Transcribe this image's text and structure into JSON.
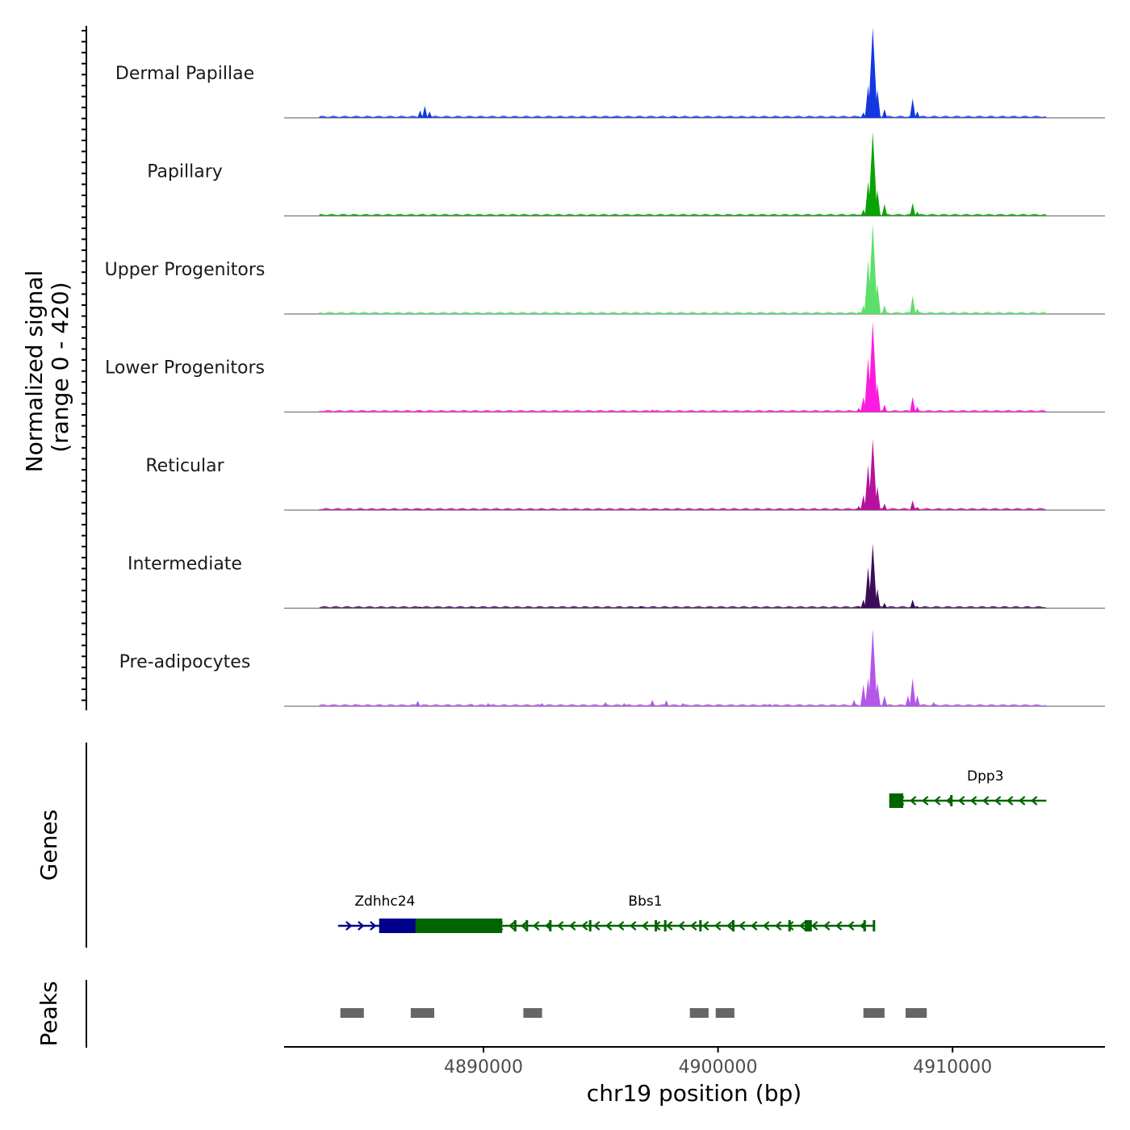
{
  "chart_data": {
    "type": "area",
    "title": "",
    "chromosome": "chr19",
    "xlabel": "chr19 position (bp)",
    "ylabel_line1": "Normalized signal",
    "ylabel_line2": "(range 0 - 420)",
    "ylim": [
      0,
      420
    ],
    "xlim": [
      4881500,
      4916500
    ],
    "x_ticks": [
      4890000,
      4900000,
      4910000
    ],
    "x_tick_labels": [
      "4890000",
      "4900000",
      "4910000"
    ],
    "tracks": [
      {
        "name": "Dermal Papillae",
        "color": "#1437e0",
        "peaks": [
          [
            4884500,
            4
          ],
          [
            4887300,
            35
          ],
          [
            4887500,
            55
          ],
          [
            4887700,
            30
          ],
          [
            4895500,
            6
          ],
          [
            4898200,
            8
          ],
          [
            4900300,
            6
          ],
          [
            4906000,
            7
          ],
          [
            4906200,
            25
          ],
          [
            4906400,
            150
          ],
          [
            4906600,
            420
          ],
          [
            4906800,
            130
          ],
          [
            4907100,
            40
          ],
          [
            4908300,
            90
          ],
          [
            4908500,
            30
          ]
        ]
      },
      {
        "name": "Papillary",
        "color": "#0aa305",
        "peaks": [
          [
            4884000,
            3
          ],
          [
            4887300,
            6
          ],
          [
            4894500,
            5
          ],
          [
            4896800,
            6
          ],
          [
            4906000,
            7
          ],
          [
            4906200,
            30
          ],
          [
            4906400,
            160
          ],
          [
            4906600,
            390
          ],
          [
            4906800,
            120
          ],
          [
            4907100,
            55
          ],
          [
            4908300,
            60
          ],
          [
            4908500,
            20
          ]
        ]
      },
      {
        "name": "Upper Progenitors",
        "color": "#5ce06b",
        "peaks": [
          [
            4884500,
            3
          ],
          [
            4887300,
            5
          ],
          [
            4894500,
            5
          ],
          [
            4906000,
            10
          ],
          [
            4906200,
            40
          ],
          [
            4906400,
            250
          ],
          [
            4906600,
            420
          ],
          [
            4906800,
            140
          ],
          [
            4907100,
            40
          ],
          [
            4908300,
            85
          ],
          [
            4908500,
            25
          ],
          [
            4910000,
            8
          ],
          [
            4912300,
            6
          ]
        ]
      },
      {
        "name": "Lower Progenitors",
        "color": "#ff1ae0",
        "peaks": [
          [
            4884500,
            3
          ],
          [
            4887300,
            10
          ],
          [
            4897200,
            12
          ],
          [
            4906000,
            20
          ],
          [
            4906200,
            70
          ],
          [
            4906400,
            250
          ],
          [
            4906600,
            420
          ],
          [
            4906800,
            130
          ],
          [
            4907100,
            35
          ],
          [
            4908300,
            70
          ],
          [
            4908500,
            25
          ]
        ]
      },
      {
        "name": "Reticular",
        "color": "#b5129e",
        "peaks": [
          [
            4883500,
            3
          ],
          [
            4885500,
            4
          ],
          [
            4887300,
            8
          ],
          [
            4889000,
            4
          ],
          [
            4894500,
            5
          ],
          [
            4897200,
            6
          ],
          [
            4900500,
            4
          ],
          [
            4906000,
            20
          ],
          [
            4906200,
            70
          ],
          [
            4906400,
            210
          ],
          [
            4906600,
            330
          ],
          [
            4906800,
            110
          ],
          [
            4907100,
            30
          ],
          [
            4908300,
            45
          ],
          [
            4908500,
            15
          ]
        ]
      },
      {
        "name": "Intermediate",
        "color": "#3b0c5a",
        "peaks": [
          [
            4884500,
            3
          ],
          [
            4887300,
            8
          ],
          [
            4889500,
            5
          ],
          [
            4896700,
            10
          ],
          [
            4899000,
            5
          ],
          [
            4906000,
            10
          ],
          [
            4906200,
            40
          ],
          [
            4906400,
            190
          ],
          [
            4906600,
            300
          ],
          [
            4906800,
            90
          ],
          [
            4907100,
            25
          ],
          [
            4908300,
            40
          ],
          [
            4908500,
            10
          ]
        ]
      },
      {
        "name": "Pre-adipocytes",
        "color": "#b357e8",
        "peaks": [
          [
            4883500,
            8
          ],
          [
            4884500,
            10
          ],
          [
            4885600,
            8
          ],
          [
            4887200,
            25
          ],
          [
            4888500,
            10
          ],
          [
            4889500,
            12
          ],
          [
            4890200,
            15
          ],
          [
            4892500,
            15
          ],
          [
            4895200,
            20
          ],
          [
            4896000,
            15
          ],
          [
            4897200,
            30
          ],
          [
            4897800,
            28
          ],
          [
            4898500,
            15
          ],
          [
            4900000,
            10
          ],
          [
            4902200,
            12
          ],
          [
            4903500,
            10
          ],
          [
            4905800,
            30
          ],
          [
            4906200,
            100
          ],
          [
            4906400,
            130
          ],
          [
            4906600,
            360
          ],
          [
            4906800,
            110
          ],
          [
            4907100,
            50
          ],
          [
            4908100,
            50
          ],
          [
            4908300,
            130
          ],
          [
            4908500,
            50
          ],
          [
            4909200,
            20
          ],
          [
            4912500,
            8
          ]
        ]
      }
    ],
    "genes_track_label": "Genes",
    "genes": [
      {
        "name": "Zdhhc24",
        "strand": "+",
        "color": "#00008b",
        "start": 4883800,
        "end": 4885600,
        "exons": [
          [
            4885550,
            4887500
          ]
        ],
        "row": 2
      },
      {
        "name": "Bbs1",
        "strand": "-",
        "color": "#006400",
        "start": 4887100,
        "end": 4906700,
        "exons": [
          [
            4887100,
            4890800
          ],
          [
            4891300,
            4891400
          ],
          [
            4891800,
            4891900
          ],
          [
            4892800,
            4892900
          ],
          [
            4894500,
            4894600
          ],
          [
            4897300,
            4897400
          ],
          [
            4897700,
            4897800
          ],
          [
            4899200,
            4899300
          ],
          [
            4900600,
            4900700
          ],
          [
            4903000,
            4903100
          ],
          [
            4903700,
            4904000
          ],
          [
            4906200,
            4906300
          ],
          [
            4906600,
            4906700
          ]
        ],
        "row": 2
      },
      {
        "name": "Dpp3",
        "strand": "-",
        "color": "#006400",
        "start": 4907300,
        "end": 4914000,
        "exons": [
          [
            4907300,
            4907900
          ],
          [
            4909900,
            4910000
          ]
        ],
        "row": 1
      }
    ],
    "peaks_track_label": "Peaks",
    "peak_regions": [
      [
        4883900,
        4884900
      ],
      [
        4886900,
        4887900
      ],
      [
        4891700,
        4892500
      ],
      [
        4898800,
        4899600
      ],
      [
        4899900,
        4900700
      ],
      [
        4906200,
        4907100
      ],
      [
        4908000,
        4908900
      ]
    ]
  }
}
